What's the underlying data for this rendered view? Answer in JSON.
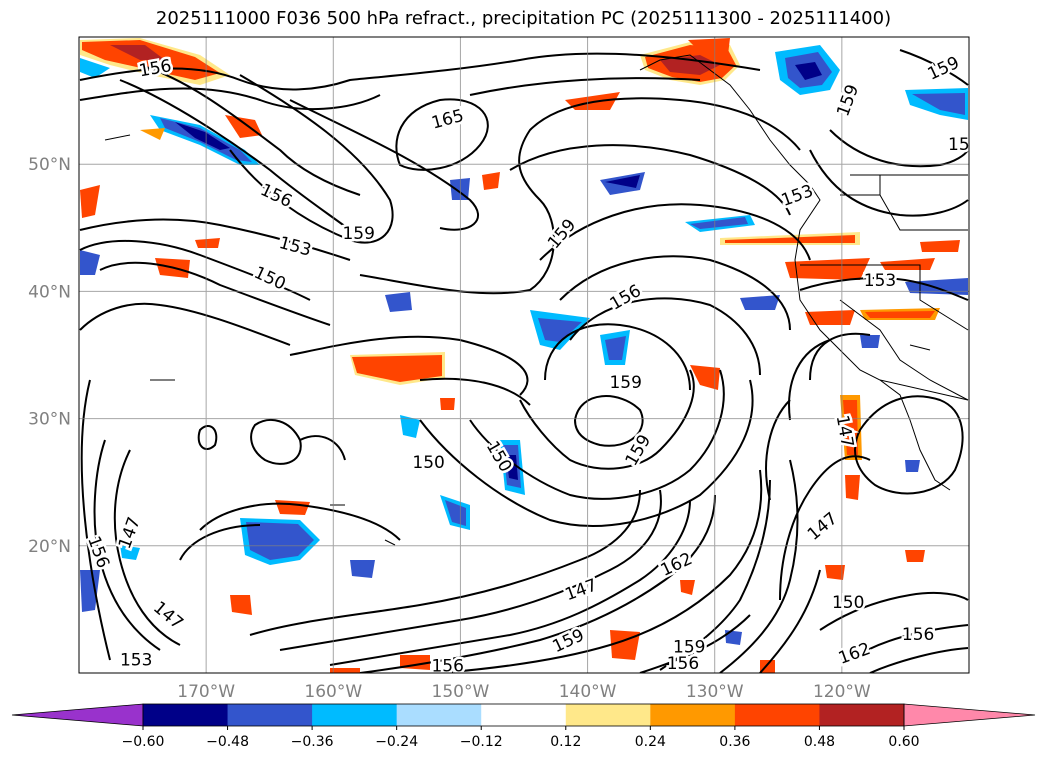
{
  "title": "2025111000 F036 500 hPa refract., precipitation PC (2025111300 - 2025111400)",
  "axes": {
    "lat_ticks": [
      {
        "label": "50°N",
        "lat": 50
      },
      {
        "label": "40°N",
        "lat": 40
      },
      {
        "label": "30°N",
        "lat": 30
      },
      {
        "label": "20°N",
        "lat": 20
      }
    ],
    "lon_ticks": [
      {
        "label": "170°W",
        "lon": -170
      },
      {
        "label": "160°W",
        "lon": -160
      },
      {
        "label": "150°W",
        "lon": -150
      },
      {
        "label": "140°W",
        "lon": -140
      },
      {
        "label": "130°W",
        "lon": -130
      },
      {
        "label": "120°W",
        "lon": -120
      }
    ],
    "extent": {
      "lon_min": -180,
      "lon_max": -110,
      "lat_min": 10,
      "lat_max": 60
    },
    "grid": true
  },
  "colorbar": {
    "ticks": [
      "−0.60",
      "−0.48",
      "−0.36",
      "−0.24",
      "−0.12",
      "0.12",
      "0.24",
      "0.36",
      "0.48",
      "0.60"
    ],
    "colors": {
      "lt_-0.60": "#9932cc",
      "-0.60_-0.48": "#000088",
      "-0.48_-0.36": "#3355cc",
      "-0.36_-0.24": "#00bbff",
      "-0.24_-0.12": "#aaddff",
      "-0.12_0.12": "#ffffff",
      "0.12_0.24": "#ffe88a",
      "0.24_0.36": "#ff9900",
      "0.36_0.48": "#ff4400",
      "0.48_0.60": "#b22222",
      "gt_0.60": "#ff88aa"
    }
  },
  "contour_labels": [
    {
      "text": "156",
      "lon": -174,
      "lat": 57.5,
      "rot": -10
    },
    {
      "text": "165",
      "lon": -151,
      "lat": 53.5,
      "rot": -15
    },
    {
      "text": "156",
      "lon": -164.5,
      "lat": 47.5,
      "rot": 25
    },
    {
      "text": "159",
      "lon": -158,
      "lat": 44.5,
      "rot": 0
    },
    {
      "text": "153",
      "lon": -163,
      "lat": 43.5,
      "rot": 15
    },
    {
      "text": "150",
      "lon": -165,
      "lat": 41,
      "rot": 25
    },
    {
      "text": "159",
      "lon": -142,
      "lat": 44.5,
      "rot": -50
    },
    {
      "text": "156",
      "lon": -137,
      "lat": 39.5,
      "rot": -30
    },
    {
      "text": "159",
      "lon": -137,
      "lat": 32.8,
      "rot": 0
    },
    {
      "text": "159",
      "lon": -136,
      "lat": 27.5,
      "rot": -60
    },
    {
      "text": "150",
      "lon": -152.5,
      "lat": 26.5,
      "rot": 0
    },
    {
      "text": "150",
      "lon": -147,
      "lat": 27,
      "rot": 60
    },
    {
      "text": "147",
      "lon": -176,
      "lat": 21,
      "rot": -70
    },
    {
      "text": "156",
      "lon": -178.5,
      "lat": 19.5,
      "rot": 70
    },
    {
      "text": "147",
      "lon": -173,
      "lat": 14.5,
      "rot": 40
    },
    {
      "text": "153",
      "lon": -175.5,
      "lat": 11,
      "rot": 0
    },
    {
      "text": "147",
      "lon": -140.5,
      "lat": 16.5,
      "rot": -20
    },
    {
      "text": "159",
      "lon": -141.5,
      "lat": 12.5,
      "rot": -25
    },
    {
      "text": "162",
      "lon": -133,
      "lat": 18.5,
      "rot": -25
    },
    {
      "text": "156",
      "lon": -151,
      "lat": 10.5,
      "rot": 0
    },
    {
      "text": "159",
      "lon": -132,
      "lat": 12,
      "rot": 0
    },
    {
      "text": "156",
      "lon": -132.5,
      "lat": 10.7,
      "rot": 0
    },
    {
      "text": "159",
      "lon": -119.5,
      "lat": 55,
      "rot": -70
    },
    {
      "text": "159",
      "lon": -112,
      "lat": 57.5,
      "rot": -25
    },
    {
      "text": "15",
      "lon": -110.8,
      "lat": 51.5,
      "rot": 0
    },
    {
      "text": "153",
      "lon": -123.5,
      "lat": 47.5,
      "rot": -20
    },
    {
      "text": "153",
      "lon": -117,
      "lat": 40.8,
      "rot": 0
    },
    {
      "text": "147",
      "lon": -119.8,
      "lat": 29,
      "rot": 80
    },
    {
      "text": "147",
      "lon": -121.5,
      "lat": 21.5,
      "rot": -40
    },
    {
      "text": "150",
      "lon": -119.5,
      "lat": 15.5,
      "rot": 0
    },
    {
      "text": "156",
      "lon": -114,
      "lat": 13,
      "rot": 0
    },
    {
      "text": "162",
      "lon": -119,
      "lat": 11.5,
      "rot": -20
    }
  ]
}
